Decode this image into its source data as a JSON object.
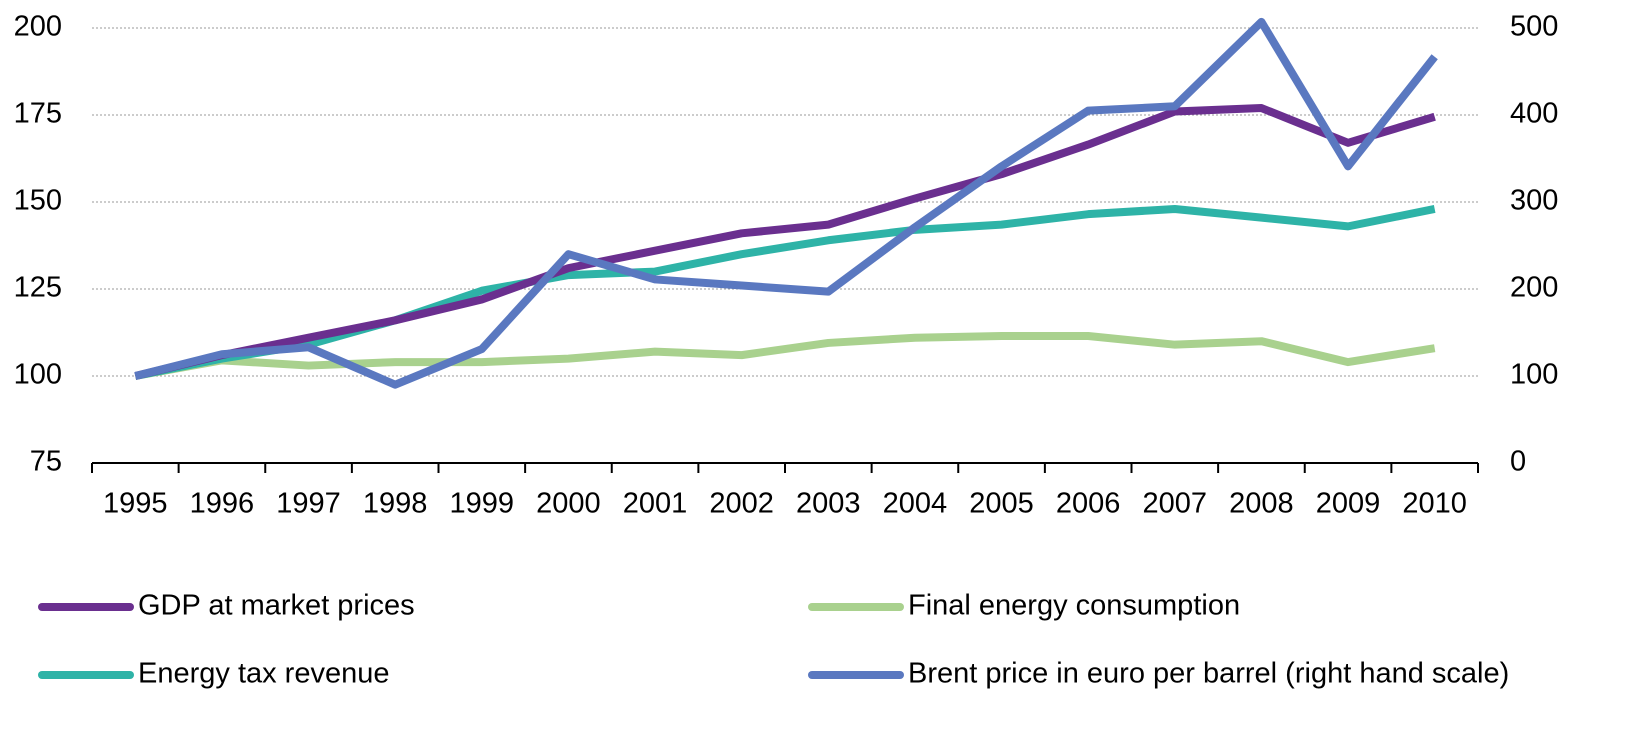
{
  "chart_data": {
    "type": "line",
    "categories": [
      "1995",
      "1996",
      "1997",
      "1998",
      "1999",
      "2000",
      "2001",
      "2002",
      "2003",
      "2004",
      "2005",
      "2006",
      "2007",
      "2008",
      "2009",
      "2010"
    ],
    "series": [
      {
        "name": "GDP at market prices",
        "color": "#6a2f8f",
        "values": [
          100,
          106,
          111,
          116,
          122,
          131,
          136,
          141,
          143.5,
          151,
          158,
          166.5,
          176,
          177,
          167,
          174.5
        ]
      },
      {
        "name": "Final energy consumption",
        "color": "#a9d18e",
        "values": [
          100,
          104.5,
          103,
          104,
          104,
          105,
          107,
          106,
          109.5,
          111,
          111.5,
          111.5,
          109,
          110,
          104,
          108
        ]
      },
      {
        "name": "Energy tax revenue",
        "color": "#2eb3a7",
        "values": [
          100,
          105,
          109,
          116,
          124.5,
          129,
          130,
          135,
          139,
          142,
          143.5,
          146.5,
          148,
          145.5,
          143,
          148
        ]
      },
      {
        "name": "Brent price in euro per barrel (right hand scale)",
        "color": "#5a78c0",
        "axis": "y2",
        "values": [
          100,
          125,
          133,
          90,
          131,
          240,
          211,
          204,
          197,
          271,
          341,
          405,
          410,
          507,
          341,
          467
        ]
      }
    ],
    "ylim": [
      75,
      200
    ],
    "yticks": [
      75,
      100,
      125,
      150,
      175,
      200
    ],
    "y2lim": [
      0,
      500
    ],
    "y2ticks": [
      0,
      100,
      200,
      300,
      400,
      500
    ],
    "grid": true
  }
}
